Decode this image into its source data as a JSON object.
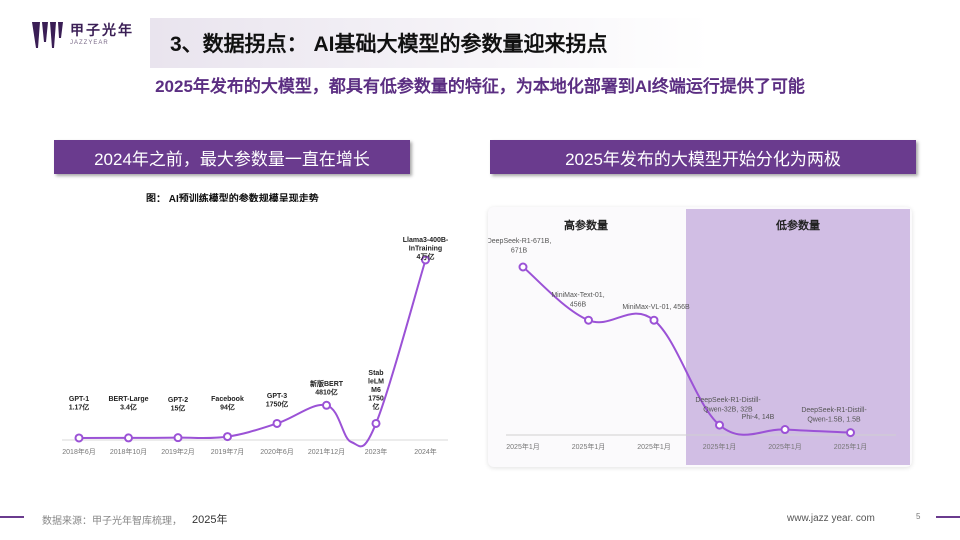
{
  "brand": {
    "name": "甲子光年",
    "sub": "JAZZYEAR"
  },
  "header": {
    "title": "3、数据拐点： AI基础大模型的参数量迎来拐点",
    "subtitle": "2025年发布的大模型，都具有低参数量的特征，为本地化部署到AI终端运行提供了可能"
  },
  "left_panel": {
    "header": "2024年之前，最大参数量一直在增长",
    "chart_title": "图： AI预训练模型的参数规模呈现走势"
  },
  "right_panel": {
    "header": "2025年发布的大模型开始分化为两极"
  },
  "footer": {
    "source": "数据来源：甲子光年智库梳理，",
    "year": "2025年",
    "website": "www.jazz year. com",
    "page": "5"
  },
  "colors": {
    "accent": "#6a3b8e",
    "line": "#9b52d6",
    "band": "#c3a9dc"
  },
  "chart_data": [
    {
      "type": "line",
      "title": "图： AI预训练模型的参数规模呈现走势",
      "x": [
        "2018年6月",
        "2018年10月",
        "2019年2月",
        "2019年7月",
        "2020年6月",
        "2021年12月",
        "2023年",
        "2024年"
      ],
      "annotations": [
        [
          "GPT-1",
          "1.17亿"
        ],
        [
          "BERT-Large",
          "3.4亿"
        ],
        [
          "GPT-2",
          "15亿"
        ],
        [
          "Facebook",
          "94亿"
        ],
        [
          "GPT-3",
          "1750亿"
        ],
        [
          "新版BERT",
          "4810亿"
        ],
        [
          "Stab",
          "leLM",
          "M6",
          "1750",
          "亿"
        ],
        [
          "Llama3-400B-",
          "InTraining",
          "4万亿"
        ]
      ],
      "values": [
        1.17,
        3.4,
        15,
        94,
        1750,
        4810,
        1750,
        40000
      ],
      "grid": false
    },
    {
      "type": "line",
      "x": [
        "2025年1月",
        "2025年1月",
        "2025年1月",
        "2025年1月",
        "2025年1月",
        "2025年1月"
      ],
      "annotations": [
        [
          "DeepSeek-R1-671B,",
          "671B"
        ],
        [
          "MiniMax-Text-01,",
          "456B"
        ],
        [
          "MiniMax-VL-01, 456B"
        ],
        [
          "DeepSeek-R1-Distill-",
          "Qwen-32B, 32B"
        ],
        [
          "Phi-4, 14B"
        ],
        [
          "DeepSeek-R1-Distill-",
          "Qwen-1.5B, 1.5B"
        ]
      ],
      "values": [
        671,
        456,
        456,
        32,
        14,
        1.5
      ],
      "regions": [
        {
          "label": "高参数量"
        },
        {
          "label": "低参数量"
        }
      ],
      "grid": false
    }
  ]
}
